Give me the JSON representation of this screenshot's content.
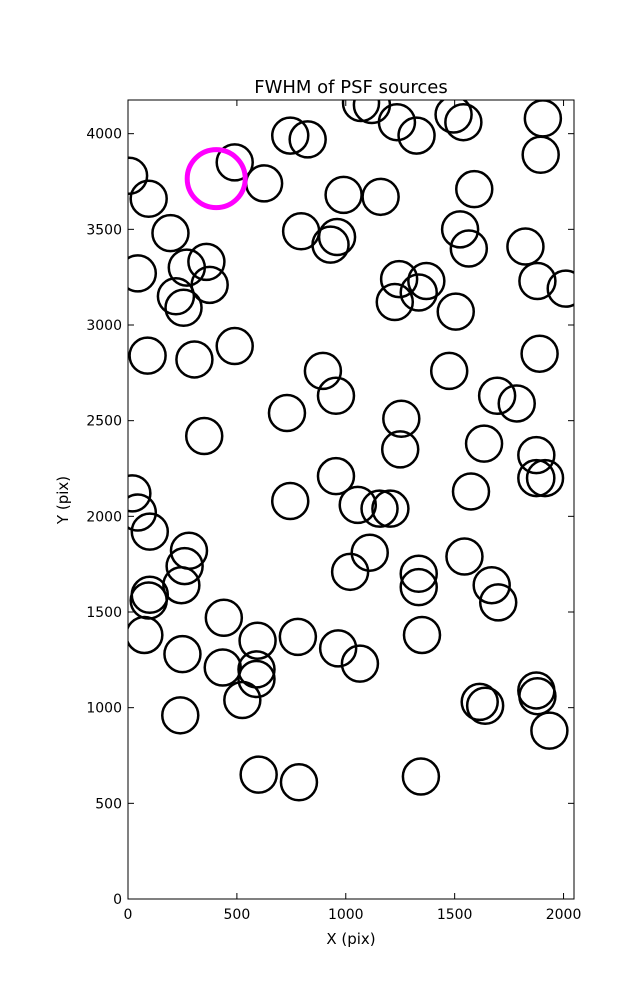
{
  "chart_data": {
    "type": "scatter",
    "title": "FWHM of PSF sources",
    "xlabel": "X (pix)",
    "ylabel": "Y (pix)",
    "xlim": [
      0,
      2048
    ],
    "ylim": [
      0,
      4176
    ],
    "xticks": [
      0,
      500,
      1000,
      1500,
      2000
    ],
    "yticks": [
      0,
      500,
      1000,
      1500,
      2000,
      2500,
      3000,
      3500,
      4000
    ],
    "marker": "open circle",
    "marker_color": "#000000",
    "highlight_color": "#ff00ff",
    "series": [
      {
        "points": [
          [
            5,
            3780
          ],
          [
            95,
            3660
          ],
          [
            45,
            3270
          ],
          [
            195,
            3480
          ],
          [
            270,
            3300
          ],
          [
            360,
            3330
          ],
          [
            220,
            3150
          ],
          [
            255,
            3090
          ],
          [
            375,
            3210
          ],
          [
            490,
            3850
          ],
          [
            625,
            3740
          ],
          [
            745,
            3990
          ],
          [
            825,
            3970
          ],
          [
            795,
            3490
          ],
          [
            930,
            3420
          ],
          [
            960,
            3460
          ],
          [
            990,
            3680
          ],
          [
            1160,
            3670
          ],
          [
            1070,
            4160
          ],
          [
            1120,
            4150
          ],
          [
            1235,
            4060
          ],
          [
            1325,
            3990
          ],
          [
            1495,
            4100
          ],
          [
            1540,
            4060
          ],
          [
            1590,
            3710
          ],
          [
            1525,
            3500
          ],
          [
            1565,
            3400
          ],
          [
            1245,
            3240
          ],
          [
            1225,
            3120
          ],
          [
            1335,
            3170
          ],
          [
            1370,
            3230
          ],
          [
            1505,
            3070
          ],
          [
            1825,
            3410
          ],
          [
            1880,
            3230
          ],
          [
            2010,
            3190
          ],
          [
            1905,
            4080
          ],
          [
            1895,
            3890
          ],
          [
            90,
            2840
          ],
          [
            305,
            2820
          ],
          [
            490,
            2890
          ],
          [
            350,
            2420
          ],
          [
            730,
            2540
          ],
          [
            895,
            2760
          ],
          [
            955,
            2630
          ],
          [
            1255,
            2510
          ],
          [
            1250,
            2350
          ],
          [
            1475,
            2760
          ],
          [
            1635,
            2380
          ],
          [
            1695,
            2630
          ],
          [
            1785,
            2590
          ],
          [
            1890,
            2850
          ],
          [
            20,
            2120
          ],
          [
            45,
            2020
          ],
          [
            100,
            1920
          ],
          [
            745,
            2080
          ],
          [
            955,
            2210
          ],
          [
            1055,
            2060
          ],
          [
            1155,
            2040
          ],
          [
            1205,
            2040
          ],
          [
            1110,
            1810
          ],
          [
            1020,
            1710
          ],
          [
            1575,
            2130
          ],
          [
            1875,
            2320
          ],
          [
            1875,
            2200
          ],
          [
            1915,
            2200
          ],
          [
            280,
            1820
          ],
          [
            260,
            1740
          ],
          [
            245,
            1640
          ],
          [
            100,
            1590
          ],
          [
            95,
            1560
          ],
          [
            75,
            1380
          ],
          [
            250,
            1280
          ],
          [
            440,
            1470
          ],
          [
            595,
            1350
          ],
          [
            780,
            1370
          ],
          [
            965,
            1310
          ],
          [
            1065,
            1230
          ],
          [
            1335,
            1700
          ],
          [
            1335,
            1630
          ],
          [
            1350,
            1380
          ],
          [
            1545,
            1790
          ],
          [
            1670,
            1640
          ],
          [
            1700,
            1550
          ],
          [
            435,
            1210
          ],
          [
            590,
            1200
          ],
          [
            590,
            1150
          ],
          [
            525,
            1040
          ],
          [
            240,
            960
          ],
          [
            600,
            650
          ],
          [
            785,
            610
          ],
          [
            1345,
            640
          ],
          [
            1615,
            1030
          ],
          [
            1640,
            1010
          ],
          [
            1875,
            1090
          ],
          [
            1880,
            1060
          ],
          [
            1935,
            880
          ]
        ]
      },
      {
        "points": [
          [
            405,
            3765
          ]
        ]
      }
    ]
  }
}
